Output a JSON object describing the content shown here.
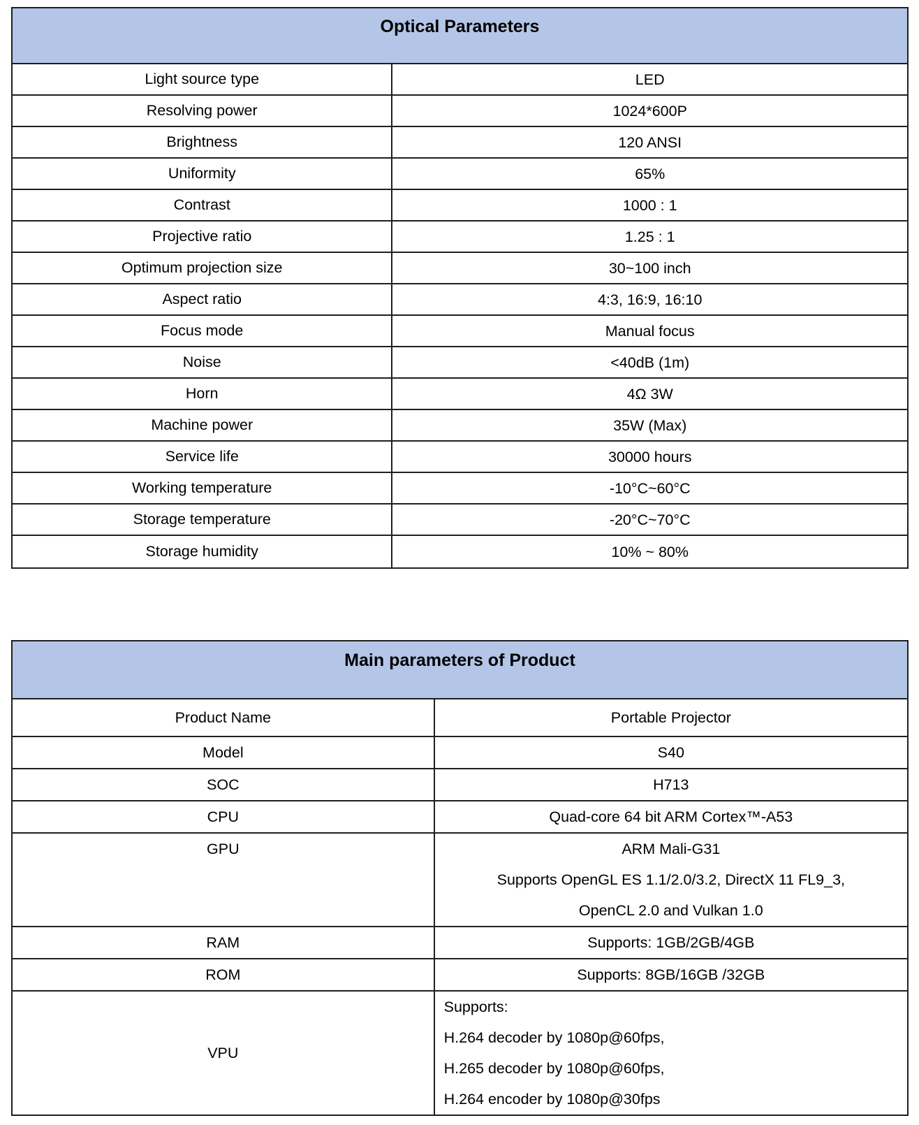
{
  "colors": {
    "header_background": "#b4c6e7",
    "border": "#1f1f1f",
    "text": "#000000",
    "page_background": "#ffffff"
  },
  "optical_table": {
    "title": "Optical Parameters",
    "rows": [
      {
        "label": "Light source type",
        "value": "LED"
      },
      {
        "label": "Resolving power",
        "value": "1024*600P"
      },
      {
        "label": "Brightness",
        "value": "120 ANSI"
      },
      {
        "label": "Uniformity",
        "value": "65%"
      },
      {
        "label": "Contrast",
        "value": "1000 : 1"
      },
      {
        "label": "Projective ratio",
        "value": "1.25 : 1"
      },
      {
        "label": "Optimum projection size",
        "value": "30~100 inch"
      },
      {
        "label": "Aspect ratio",
        "value": "4:3, 16:9, 16:10"
      },
      {
        "label": "Focus mode",
        "value": "Manual focus"
      },
      {
        "label": "Noise",
        "value": "<40dB (1m)"
      },
      {
        "label": "Horn",
        "value": "4Ω 3W"
      },
      {
        "label": "Machine power",
        "value": "35W (Max)"
      },
      {
        "label": "Service life",
        "value": "30000 hours"
      },
      {
        "label": "Working temperature",
        "value": "-10°C~60°C"
      },
      {
        "label": "Storage temperature",
        "value": "-20°C~70°C"
      },
      {
        "label": "Storage humidity",
        "value": "10% ~ 80%"
      }
    ]
  },
  "main_table": {
    "title": "Main parameters of Product",
    "rows": [
      {
        "label": "Product Name",
        "lines": [
          "Portable Projector"
        ]
      },
      {
        "label": "Model",
        "lines": [
          "S40"
        ]
      },
      {
        "label": "SOC",
        "lines": [
          "H713"
        ]
      },
      {
        "label": "CPU",
        "lines": [
          "Quad-core 64 bit ARM Cortex™-A53"
        ]
      },
      {
        "label": "GPU",
        "lines": [
          "ARM Mali-G31",
          "Supports OpenGL ES 1.1/2.0/3.2, DirectX 11 FL9_3,",
          "OpenCL 2.0 and Vulkan 1.0"
        ]
      },
      {
        "label": "RAM",
        "lines": [
          "Supports: 1GB/2GB/4GB"
        ]
      },
      {
        "label": "ROM",
        "lines": [
          "Supports: 8GB/16GB /32GB"
        ]
      },
      {
        "label": "VPU",
        "align": "left",
        "lines": [
          "Supports:",
          "H.264 decoder by 1080p@60fps,",
          "H.265 decoder by 1080p@60fps,",
          "H.264 encoder by 1080p@30fps"
        ]
      }
    ]
  }
}
